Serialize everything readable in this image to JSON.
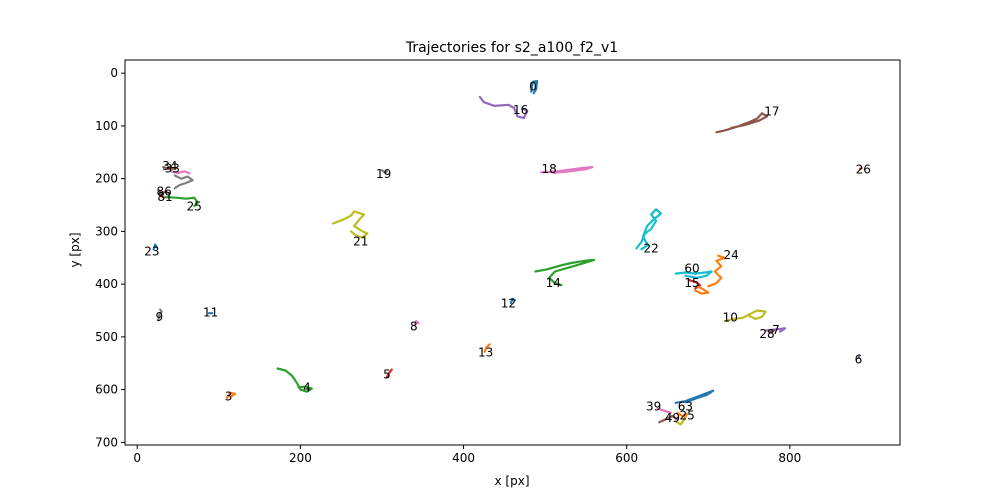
{
  "chart_data": {
    "type": "line",
    "title": "Trajectories for s2_a100_f2_v1",
    "xlabel": "x [px]",
    "ylabel": "y [px]",
    "xlim": [
      -15,
      935
    ],
    "ylim": [
      705,
      -25
    ],
    "y_inverted": true,
    "grid": false,
    "xticks": [
      0,
      200,
      400,
      600,
      800
    ],
    "yticks": [
      0,
      100,
      200,
      300,
      400,
      500,
      600,
      700
    ],
    "series": [
      {
        "name": "0",
        "color": "#1f77b4",
        "label_at": [
          485,
          25
        ],
        "points": [
          [
            483,
            35
          ],
          [
            484,
            22
          ],
          [
            486,
            16
          ],
          [
            490,
            15
          ],
          [
            489,
            30
          ],
          [
            486,
            38
          ]
        ]
      },
      {
        "name": "16",
        "color": "#9467bd",
        "label_at": [
          470,
          70
        ],
        "points": [
          [
            420,
            45
          ],
          [
            425,
            55
          ],
          [
            438,
            62
          ],
          [
            455,
            60
          ],
          [
            462,
            66
          ],
          [
            466,
            82
          ],
          [
            474,
            85
          ],
          [
            478,
            72
          ],
          [
            472,
            66
          ]
        ]
      },
      {
        "name": "17",
        "color": "#8c564b",
        "label_at": [
          778,
          73
        ],
        "points": [
          [
            710,
            112
          ],
          [
            722,
            108
          ],
          [
            738,
            100
          ],
          [
            750,
            93
          ],
          [
            760,
            86
          ],
          [
            766,
            76
          ],
          [
            772,
            82
          ],
          [
            762,
            90
          ],
          [
            745,
            98
          ],
          [
            728,
            104
          ]
        ]
      },
      {
        "name": "26",
        "color": "#d62728",
        "label_at": [
          890,
          183
        ],
        "points": [
          [
            886,
            182
          ],
          [
            888,
            180
          ]
        ]
      },
      {
        "name": "18",
        "color": "#e377c2",
        "label_at": [
          505,
          182
        ],
        "points": [
          [
            495,
            188
          ],
          [
            515,
            186
          ],
          [
            530,
            183
          ],
          [
            545,
            180
          ],
          [
            558,
            178
          ],
          [
            550,
            182
          ],
          [
            530,
            186
          ],
          [
            510,
            189
          ]
        ]
      },
      {
        "name": "34",
        "color": "#8c564b",
        "label_at": [
          40,
          176
        ],
        "points": [
          [
            32,
            178
          ],
          [
            40,
            182
          ],
          [
            48,
            180
          ]
        ]
      },
      {
        "name": "33",
        "color": "#e377c2",
        "label_at": [
          43,
          181
        ],
        "points": [
          [
            42,
            186
          ],
          [
            50,
            189
          ],
          [
            58,
            186
          ],
          [
            64,
            190
          ]
        ]
      },
      {
        "name": "grey-cluster",
        "color": "#7f7f7f",
        "label_at": null,
        "points": [
          [
            46,
            194
          ],
          [
            54,
            200
          ],
          [
            62,
            196
          ],
          [
            68,
            203
          ],
          [
            60,
            208
          ],
          [
            52,
            212
          ],
          [
            46,
            218
          ]
        ]
      },
      {
        "name": "86",
        "color": "#8c564b",
        "label_at": [
          33,
          224
        ],
        "points": [
          [
            26,
            222
          ],
          [
            30,
            228
          ],
          [
            36,
            224
          ]
        ]
      },
      {
        "name": "81",
        "color": "#d62728",
        "label_at": [
          34,
          235
        ],
        "points": [
          [
            28,
            232
          ],
          [
            33,
            236
          ]
        ]
      },
      {
        "name": "25",
        "color": "#2ca02c",
        "label_at": [
          70,
          253
        ],
        "points": [
          [
            35,
            235
          ],
          [
            48,
            236
          ],
          [
            60,
            238
          ],
          [
            70,
            236
          ],
          [
            74,
            245
          ],
          [
            70,
            252
          ]
        ]
      },
      {
        "name": "19",
        "color": "#7f7f7f",
        "label_at": [
          302,
          191
        ],
        "points": [
          [
            300,
            184
          ],
          [
            304,
            189
          ],
          [
            306,
            186
          ]
        ]
      },
      {
        "name": "21",
        "color": "#bcbd22",
        "label_at": [
          274,
          319
        ],
        "points": [
          [
            240,
            285
          ],
          [
            252,
            278
          ],
          [
            262,
            270
          ],
          [
            266,
            262
          ],
          [
            278,
            268
          ],
          [
            272,
            278
          ],
          [
            266,
            290
          ],
          [
            274,
            298
          ],
          [
            282,
            304
          ],
          [
            276,
            312
          ],
          [
            268,
            308
          ],
          [
            262,
            300
          ]
        ]
      },
      {
        "name": "23",
        "color": "#1f77b4",
        "label_at": [
          18,
          338
        ],
        "points": [
          [
            20,
            334
          ],
          [
            22,
            325
          ],
          [
            24,
            330
          ]
        ]
      },
      {
        "name": "22",
        "color": "#17becf",
        "label_at": [
          630,
          332
        ],
        "points": [
          [
            612,
            332
          ],
          [
            618,
            320
          ],
          [
            622,
            305
          ],
          [
            630,
            295
          ],
          [
            636,
            280
          ],
          [
            630,
            268
          ],
          [
            636,
            258
          ],
          [
            642,
            266
          ],
          [
            634,
            276
          ],
          [
            625,
            290
          ],
          [
            620,
            310
          ],
          [
            626,
            326
          ],
          [
            618,
            334
          ]
        ]
      },
      {
        "name": "14",
        "color": "#2ca02c",
        "label_at": [
          510,
          398
        ],
        "points": [
          [
            488,
            376
          ],
          [
            502,
            372
          ],
          [
            518,
            365
          ],
          [
            532,
            360
          ],
          [
            548,
            356
          ],
          [
            560,
            354
          ],
          [
            548,
            360
          ],
          [
            530,
            368
          ],
          [
            512,
            376
          ],
          [
            505,
            388
          ],
          [
            512,
            398
          ],
          [
            520,
            402
          ]
        ]
      },
      {
        "name": "24",
        "color": "#ff7f0e",
        "label_at": [
          728,
          345
        ],
        "points": [
          [
            700,
            404
          ],
          [
            710,
            398
          ],
          [
            716,
            388
          ],
          [
            708,
            376
          ],
          [
            716,
            366
          ],
          [
            710,
            356
          ],
          [
            720,
            350
          ],
          [
            712,
            346
          ]
        ]
      },
      {
        "name": "60",
        "color": "#17becf",
        "label_at": [
          680,
          370
        ],
        "points": [
          [
            660,
            380
          ],
          [
            672,
            378
          ],
          [
            684,
            380
          ],
          [
            696,
            378
          ],
          [
            704,
            376
          ],
          [
            698,
            384
          ],
          [
            686,
            388
          ],
          [
            672,
            384
          ]
        ]
      },
      {
        "name": "15",
        "color": "#d62728",
        "label_at": [
          680,
          398
        ],
        "points": [
          [
            676,
            392
          ],
          [
            684,
            396
          ],
          [
            690,
            402
          ],
          [
            684,
            408
          ]
        ]
      },
      {
        "name": "15-orange",
        "color": "#ff7f0e",
        "label_at": null,
        "points": [
          [
            686,
            404
          ],
          [
            694,
            410
          ],
          [
            700,
            416
          ],
          [
            692,
            418
          ],
          [
            684,
            412
          ]
        ]
      },
      {
        "name": "12",
        "color": "#1f77b4",
        "label_at": [
          455,
          437
        ],
        "points": [
          [
            458,
            436
          ],
          [
            460,
            428
          ],
          [
            463,
            430
          ]
        ]
      },
      {
        "name": "11",
        "color": "#1f77b4",
        "label_at": [
          90,
          454
        ],
        "points": [
          [
            88,
            455
          ],
          [
            92,
            455
          ]
        ]
      },
      {
        "name": "9",
        "color": "#7f7f7f",
        "label_at": [
          27,
          462
        ],
        "points": [
          [
            26,
            468
          ],
          [
            27,
            458
          ],
          [
            30,
            452
          ],
          [
            28,
            448
          ]
        ]
      },
      {
        "name": "8",
        "color": "#e377c2",
        "label_at": [
          339,
          480
        ],
        "points": [
          [
            340,
            478
          ],
          [
            342,
            470
          ],
          [
            345,
            474
          ]
        ]
      },
      {
        "name": "10",
        "color": "#bcbd22",
        "label_at": [
          727,
          463
        ],
        "points": [
          [
            722,
            470
          ],
          [
            730,
            466
          ],
          [
            742,
            464
          ],
          [
            752,
            456
          ],
          [
            760,
            450
          ],
          [
            770,
            452
          ],
          [
            766,
            462
          ],
          [
            758,
            466
          ],
          [
            750,
            460
          ]
        ]
      },
      {
        "name": "7",
        "color": "#9467bd",
        "label_at": [
          783,
          487
        ],
        "points": [
          [
            770,
            488
          ],
          [
            782,
            486
          ],
          [
            794,
            484
          ],
          [
            788,
            490
          ]
        ]
      },
      {
        "name": "28",
        "color": "#8c564b",
        "label_at": [
          772,
          495
        ],
        "points": [
          [
            775,
            492
          ],
          [
            780,
            488
          ]
        ]
      },
      {
        "name": "13",
        "color": "#ff7f0e",
        "label_at": [
          427,
          530
        ],
        "points": [
          [
            426,
            528
          ],
          [
            428,
            520
          ],
          [
            432,
            514
          ]
        ]
      },
      {
        "name": "6",
        "color": "#9467bd",
        "label_at": [
          884,
          543
        ],
        "points": [
          [
            884,
            540
          ],
          [
            885,
            536
          ]
        ]
      },
      {
        "name": "5",
        "color": "#d62728",
        "label_at": [
          306,
          571
        ],
        "points": [
          [
            306,
            576
          ],
          [
            309,
            568
          ],
          [
            312,
            562
          ]
        ]
      },
      {
        "name": "3",
        "color": "#ff7f0e",
        "label_at": [
          112,
          613
        ],
        "points": [
          [
            110,
            616
          ],
          [
            114,
            606
          ],
          [
            120,
            608
          ],
          [
            116,
            612
          ]
        ]
      },
      {
        "name": "4",
        "color": "#2ca02c",
        "label_at": [
          208,
          596
        ],
        "points": [
          [
            172,
            560
          ],
          [
            182,
            564
          ],
          [
            190,
            574
          ],
          [
            196,
            588
          ],
          [
            200,
            600
          ],
          [
            208,
            604
          ],
          [
            214,
            598
          ],
          [
            206,
            594
          ],
          [
            198,
            596
          ]
        ]
      },
      {
        "name": "63",
        "color": "#1f77b4",
        "label_at": [
          672,
          632
        ],
        "points": [
          [
            660,
            625
          ],
          [
            672,
            622
          ],
          [
            684,
            615
          ],
          [
            696,
            608
          ],
          [
            706,
            602
          ],
          [
            698,
            610
          ],
          [
            686,
            616
          ],
          [
            672,
            624
          ]
        ]
      },
      {
        "name": "39",
        "color": "#e377c2",
        "label_at": [
          633,
          632
        ],
        "points": [
          [
            638,
            636
          ],
          [
            646,
            640
          ],
          [
            654,
            644
          ]
        ]
      },
      {
        "name": "25-orange",
        "color": "#ff7f0e",
        "label_at": [
          674,
          649
        ],
        "points": [
          [
            662,
            644
          ],
          [
            668,
            650
          ],
          [
            674,
            646
          ],
          [
            670,
            656
          ]
        ]
      },
      {
        "name": "49",
        "color": "#8c564b",
        "label_at": [
          656,
          654
        ],
        "points": [
          [
            640,
            662
          ],
          [
            648,
            656
          ],
          [
            656,
            650
          ],
          [
            662,
            656
          ]
        ]
      },
      {
        "name": "49-olive",
        "color": "#bcbd22",
        "label_at": null,
        "points": [
          [
            660,
            660
          ],
          [
            666,
            666
          ],
          [
            670,
            658
          ]
        ]
      }
    ]
  }
}
